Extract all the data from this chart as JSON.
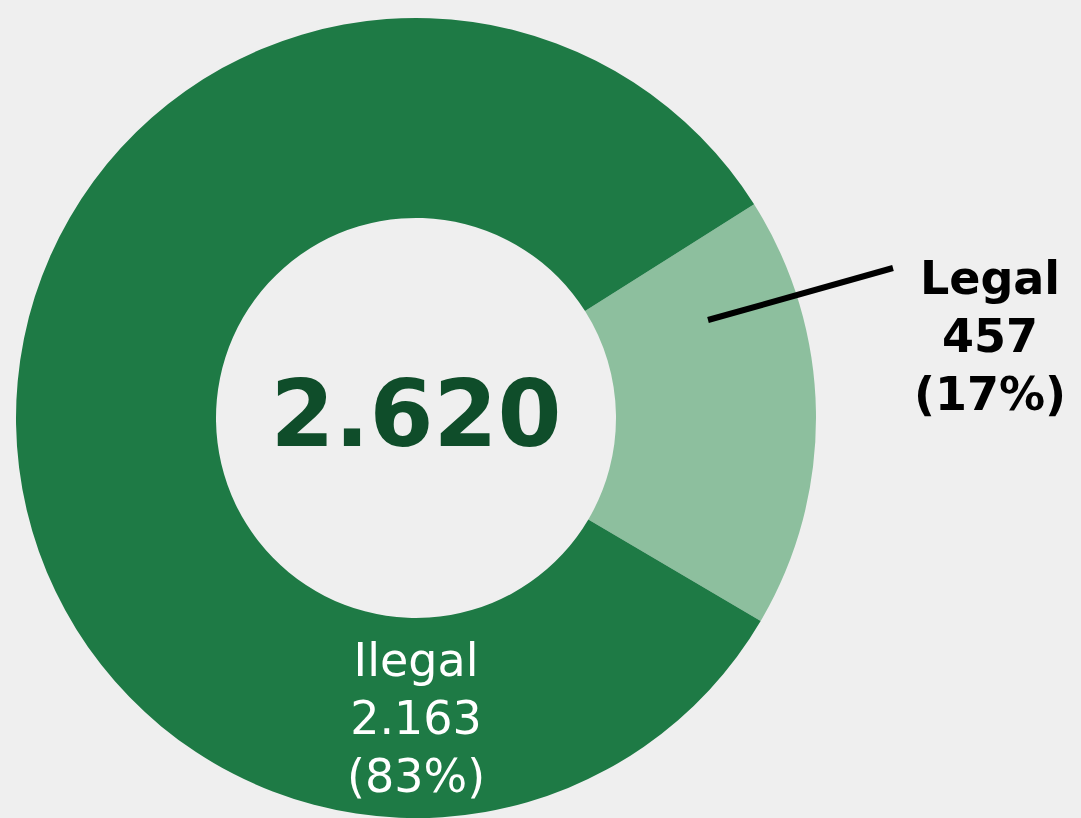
{
  "chart_data": {
    "type": "donut",
    "categories": [
      "Legal",
      "Ilegal"
    ],
    "values": [
      457,
      2163
    ],
    "colors": [
      "#8dbf9e",
      "#1e7a45"
    ],
    "value_labels": [
      "457\n(17%)",
      "2.163\n(83%)"
    ],
    "annotations": [
      "2.620"
    ]
  }
}
